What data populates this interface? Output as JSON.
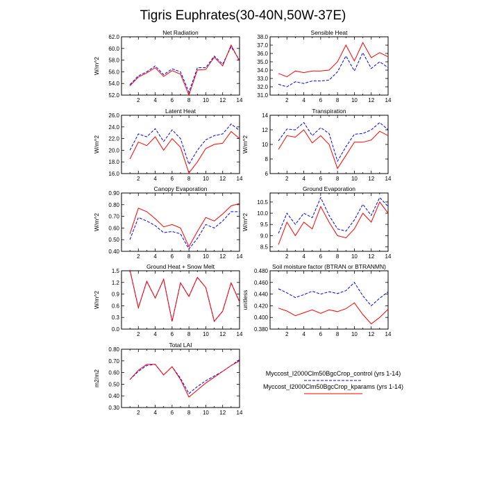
{
  "figure_title": "Tigris Euphrates(30-40N,50W-37E)",
  "colors": {
    "control": "#0000ff",
    "kparams": "#ff0000",
    "axis": "#000000"
  },
  "legend": {
    "entries": [
      {
        "label": "Myccost_I2000Clm50BgcCrop_control (yrs 1-14)",
        "color": "#0000ff",
        "dash": true
      },
      {
        "label": "Myccost_I2000Clm50BgcCrop_kparams (yrs 1-14)",
        "color": "#ff0000",
        "dash": false
      }
    ]
  },
  "chart_data": [
    {
      "type": "line",
      "title": "Net Radiation",
      "ylabel": "W/m^2",
      "x": [
        1,
        2,
        3,
        4,
        5,
        6,
        7,
        8,
        9,
        10,
        11,
        12,
        13,
        14
      ],
      "xlim": [
        0,
        14
      ],
      "xticks": [
        2,
        4,
        6,
        8,
        10,
        12,
        14
      ],
      "ylim": [
        52,
        62
      ],
      "yticks": [
        "52.0",
        "54.0",
        "56.0",
        "58.0",
        "60.0",
        "62.0"
      ],
      "series": [
        {
          "name": "Myccost_I2000Clm50BgcCrop_control (yrs 1-14)",
          "values": [
            53.8,
            55.3,
            56.0,
            57.0,
            55.5,
            56.5,
            56.0,
            52.5,
            56.7,
            56.7,
            58.7,
            57.3,
            60.3,
            58.0
          ]
        },
        {
          "name": "Myccost_I2000Clm50BgcCrop_kparams (yrs 1-14)",
          "values": [
            53.6,
            55.1,
            55.8,
            56.7,
            55.2,
            56.2,
            55.6,
            52.0,
            56.3,
            56.4,
            58.5,
            57.0,
            60.6,
            57.8
          ]
        }
      ]
    },
    {
      "type": "line",
      "title": "Sensible Heat",
      "ylabel": "",
      "x": [
        1,
        2,
        3,
        4,
        5,
        6,
        7,
        8,
        9,
        10,
        11,
        12,
        13,
        14
      ],
      "xlim": [
        0,
        14
      ],
      "xticks": [
        2,
        4,
        6,
        8,
        10,
        12,
        14
      ],
      "ylim": [
        31,
        38
      ],
      "yticks": [
        "31.0",
        "32.0",
        "33.0",
        "34.0",
        "35.0",
        "36.0",
        "37.0",
        "38.0"
      ],
      "series": [
        {
          "name": "Myccost_I2000Clm50BgcCrop_control (yrs 1-14)",
          "values": [
            32.3,
            32.0,
            32.6,
            32.4,
            32.7,
            32.7,
            32.8,
            33.8,
            35.7,
            33.9,
            36.1,
            34.2,
            35.0,
            34.3
          ]
        },
        {
          "name": "Myccost_I2000Clm50BgcCrop_kparams (yrs 1-14)",
          "values": [
            33.6,
            33.2,
            33.9,
            33.7,
            33.9,
            33.9,
            34.0,
            35.0,
            37.0,
            35.1,
            37.3,
            35.5,
            36.1,
            35.6
          ]
        }
      ]
    },
    {
      "type": "line",
      "title": "Latent Heat",
      "ylabel": "W/m^2",
      "x": [
        1,
        2,
        3,
        4,
        5,
        6,
        7,
        8,
        9,
        10,
        11,
        12,
        13,
        14
      ],
      "xlim": [
        0,
        14
      ],
      "xticks": [
        2,
        4,
        6,
        8,
        10,
        12,
        14
      ],
      "ylim": [
        16,
        26
      ],
      "yticks": [
        "16.0",
        "18.0",
        "20.0",
        "22.0",
        "24.0",
        "26.0"
      ],
      "series": [
        {
          "name": "Myccost_I2000Clm50BgcCrop_control (yrs 1-14)",
          "values": [
            20.0,
            22.8,
            22.3,
            23.7,
            21.5,
            23.5,
            22.0,
            17.6,
            20.0,
            21.8,
            22.5,
            22.8,
            24.5,
            23.4
          ]
        },
        {
          "name": "Myccost_I2000Clm50BgcCrop_kparams (yrs 1-14)",
          "values": [
            18.5,
            21.4,
            20.8,
            22.3,
            20.0,
            22.0,
            20.5,
            16.1,
            18.0,
            20.3,
            21.0,
            21.2,
            23.2,
            22.0
          ]
        }
      ]
    },
    {
      "type": "line",
      "title": "Transpiration",
      "ylabel": "W/m^2",
      "x": [
        1,
        2,
        3,
        4,
        5,
        6,
        7,
        8,
        9,
        10,
        11,
        12,
        13,
        14
      ],
      "xlim": [
        0,
        14
      ],
      "xticks": [
        2,
        4,
        6,
        8,
        10,
        12,
        14
      ],
      "ylim": [
        6,
        14
      ],
      "yticks": [
        "6",
        "8",
        "10",
        "12",
        "14"
      ],
      "series": [
        {
          "name": "Myccost_I2000Clm50BgcCrop_control (yrs 1-14)",
          "values": [
            10.5,
            12.1,
            12.0,
            13.0,
            11.2,
            12.3,
            11.5,
            7.7,
            9.7,
            11.4,
            11.5,
            12.0,
            13.0,
            12.0
          ]
        },
        {
          "name": "Myccost_I2000Clm50BgcCrop_kparams (yrs 1-14)",
          "values": [
            9.3,
            11.2,
            11.0,
            12.0,
            10.2,
            11.2,
            10.0,
            6.7,
            8.5,
            10.3,
            10.3,
            10.6,
            11.8,
            11.2
          ]
        }
      ]
    },
    {
      "type": "line",
      "title": "Canopy Evaporation",
      "ylabel": "W/m^2",
      "x": [
        1,
        2,
        3,
        4,
        5,
        6,
        7,
        8,
        9,
        10,
        11,
        12,
        13,
        14
      ],
      "xlim": [
        0,
        14
      ],
      "xticks": [
        2,
        4,
        6,
        8,
        10,
        12,
        14
      ],
      "ylim": [
        0.4,
        0.9
      ],
      "yticks": [
        "0.40",
        "0.50",
        "0.60",
        "0.70",
        "0.80",
        "0.90"
      ],
      "series": [
        {
          "name": "Myccost_I2000Clm50BgcCrop_control (yrs 1-14)",
          "values": [
            0.5,
            0.69,
            0.66,
            0.62,
            0.56,
            0.57,
            0.55,
            0.42,
            0.51,
            0.63,
            0.6,
            0.66,
            0.74,
            0.74
          ]
        },
        {
          "name": "Myccost_I2000Clm50BgcCrop_kparams (yrs 1-14)",
          "values": [
            0.55,
            0.77,
            0.74,
            0.68,
            0.61,
            0.63,
            0.6,
            0.44,
            0.57,
            0.69,
            0.66,
            0.72,
            0.79,
            0.81
          ]
        }
      ]
    },
    {
      "type": "line",
      "title": "Ground Evaporation",
      "ylabel": "W/m^2",
      "x": [
        1,
        2,
        3,
        4,
        5,
        6,
        7,
        8,
        9,
        10,
        11,
        12,
        13,
        14
      ],
      "xlim": [
        0,
        14
      ],
      "xticks": [
        2,
        4,
        6,
        8,
        10,
        12,
        14
      ],
      "ylim": [
        8.3,
        10.9
      ],
      "yticks": [
        "8.5",
        "9.0",
        "9.5",
        "10.0",
        "10.5"
      ],
      "series": [
        {
          "name": "Myccost_I2000Clm50BgcCrop_control (yrs 1-14)",
          "values": [
            9.1,
            10.0,
            9.5,
            10.0,
            9.8,
            10.7,
            9.9,
            9.3,
            9.2,
            9.7,
            10.4,
            9.9,
            10.7,
            10.3
          ]
        },
        {
          "name": "Myccost_I2000Clm50BgcCrop_kparams (yrs 1-14)",
          "values": [
            8.6,
            9.6,
            9.0,
            9.6,
            9.3,
            10.3,
            9.6,
            9.0,
            8.9,
            9.3,
            10.0,
            9.6,
            10.5,
            10.0
          ]
        }
      ]
    },
    {
      "type": "line",
      "title": "Ground Heat + Snow Melt",
      "ylabel": "W/m^2",
      "x": [
        1,
        2,
        3,
        4,
        5,
        6,
        7,
        8,
        9,
        10,
        11,
        12,
        13,
        14
      ],
      "xlim": [
        0,
        14
      ],
      "xticks": [
        2,
        4,
        6,
        8,
        10,
        12,
        14
      ],
      "ylim": [
        0,
        1.5
      ],
      "yticks": [
        "0.0",
        "0.3",
        "0.6",
        "0.9",
        "1.2",
        "1.5"
      ],
      "series": [
        {
          "name": "Myccost_I2000Clm50BgcCrop_control (yrs 1-14)",
          "values": [
            1.52,
            0.55,
            1.23,
            0.8,
            1.28,
            0.2,
            1.19,
            0.84,
            1.33,
            1.07,
            0.2,
            0.46,
            1.19,
            0.7
          ]
        },
        {
          "name": "Myccost_I2000Clm50BgcCrop_kparams (yrs 1-14)",
          "values": [
            1.52,
            0.55,
            1.23,
            0.8,
            1.28,
            0.2,
            1.19,
            0.84,
            1.33,
            1.07,
            0.2,
            0.46,
            1.19,
            0.7
          ]
        }
      ]
    },
    {
      "type": "line",
      "title": "Soil moisture factor (BTRAN or BTRANMN)",
      "ylabel": "unitless",
      "x": [
        1,
        2,
        3,
        4,
        5,
        6,
        7,
        8,
        9,
        10,
        11,
        12,
        13,
        14
      ],
      "xlim": [
        0,
        14
      ],
      "xticks": [
        2,
        4,
        6,
        8,
        10,
        12,
        14
      ],
      "ylim": [
        0.38,
        0.48
      ],
      "yticks": [
        "0.380",
        "0.400",
        "0.420",
        "0.440",
        "0.460",
        "0.480"
      ],
      "series": [
        {
          "name": "Myccost_I2000Clm50BgcCrop_control (yrs 1-14)",
          "values": [
            0.449,
            0.442,
            0.434,
            0.439,
            0.445,
            0.44,
            0.444,
            0.441,
            0.446,
            0.46,
            0.437,
            0.42,
            0.433,
            0.444
          ]
        },
        {
          "name": "Myccost_I2000Clm50BgcCrop_kparams (yrs 1-14)",
          "values": [
            0.416,
            0.411,
            0.403,
            0.408,
            0.413,
            0.407,
            0.413,
            0.41,
            0.415,
            0.425,
            0.405,
            0.389,
            0.4,
            0.414
          ]
        }
      ]
    },
    {
      "type": "line",
      "title": "Total LAI",
      "ylabel": "m2/m2",
      "x": [
        1,
        2,
        3,
        4,
        5,
        6,
        7,
        8,
        9,
        10,
        11,
        12,
        13,
        14
      ],
      "xlim": [
        0,
        14
      ],
      "xticks": [
        2,
        4,
        6,
        8,
        10,
        12,
        14
      ],
      "ylim": [
        0.3,
        0.8
      ],
      "yticks": [
        "0.30",
        "0.40",
        "0.50",
        "0.60",
        "0.70",
        "0.80"
      ],
      "series": [
        {
          "name": "Myccost_I2000Clm50BgcCrop_control (yrs 1-14)",
          "values": [
            0.54,
            0.61,
            0.66,
            0.67,
            0.58,
            0.65,
            0.55,
            0.42,
            0.48,
            0.53,
            0.57,
            0.61,
            0.66,
            0.71
          ]
        },
        {
          "name": "Myccost_I2000Clm50BgcCrop_kparams (yrs 1-14)",
          "values": [
            0.54,
            0.62,
            0.67,
            0.67,
            0.58,
            0.65,
            0.54,
            0.39,
            0.45,
            0.51,
            0.56,
            0.61,
            0.66,
            0.7
          ]
        }
      ]
    }
  ]
}
